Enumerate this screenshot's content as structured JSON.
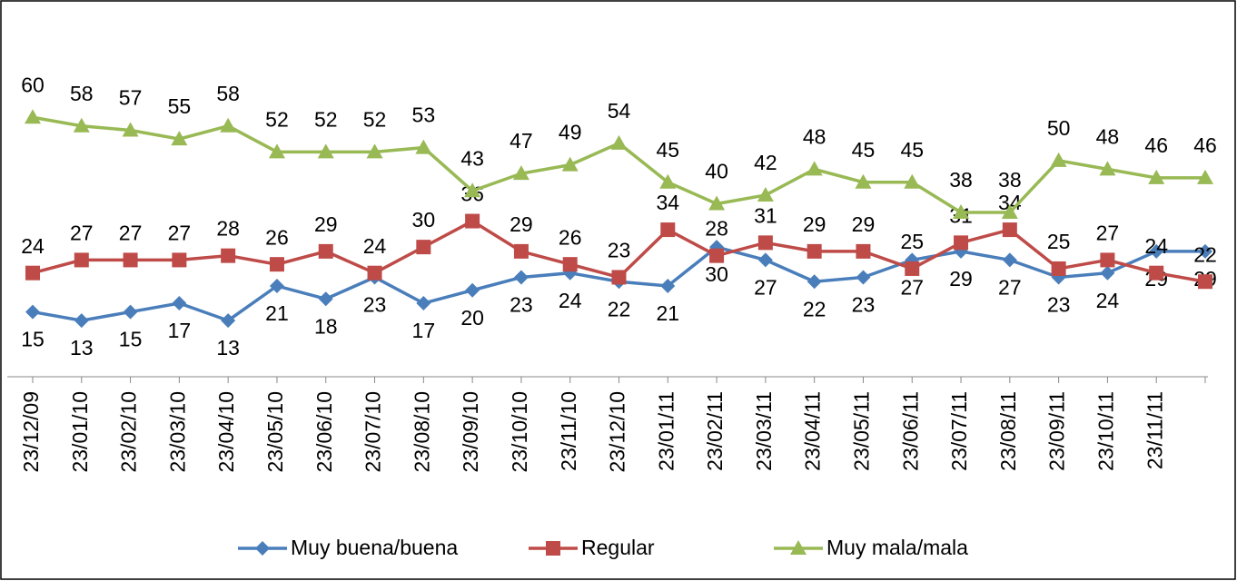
{
  "chart_data": {
    "type": "line",
    "categories": [
      "23/12/09",
      "23/01/10",
      "23/02/10",
      "23/03/10",
      "23/04/10",
      "23/05/10",
      "23/06/10",
      "23/07/10",
      "23/08/10",
      "23/09/10",
      "23/10/10",
      "23/11/10",
      "23/12/10",
      "23/01/11",
      "23/02/11",
      "23/03/11",
      "23/04/11",
      "23/05/11",
      "23/06/11",
      "23/07/11",
      "23/08/11",
      "23/09/11",
      "23/10/11",
      "23/11/11",
      null
    ],
    "series": [
      {
        "name": "Muy buena/buena",
        "color": "#4a7ebb",
        "marker": "diamond",
        "values": [
          15,
          13,
          15,
          17,
          13,
          21,
          18,
          23,
          17,
          20,
          23,
          24,
          22,
          21,
          30,
          27,
          22,
          23,
          27,
          29,
          27,
          23,
          24,
          29,
          29
        ]
      },
      {
        "name": "Regular",
        "color": "#be4b48",
        "marker": "square",
        "values": [
          24,
          27,
          27,
          27,
          28,
          26,
          29,
          24,
          30,
          36,
          29,
          26,
          23,
          34,
          28,
          31,
          29,
          29,
          25,
          31,
          34,
          25,
          27,
          24,
          22
        ]
      },
      {
        "name": "Muy mala/mala",
        "color": "#98b954",
        "marker": "triangle",
        "values": [
          60,
          58,
          57,
          55,
          58,
          52,
          52,
          52,
          53,
          43,
          47,
          49,
          54,
          45,
          40,
          42,
          48,
          45,
          45,
          38,
          38,
          50,
          48,
          46,
          46
        ]
      }
    ],
    "ylim": [
      0,
      80
    ],
    "legend": "bottom"
  }
}
